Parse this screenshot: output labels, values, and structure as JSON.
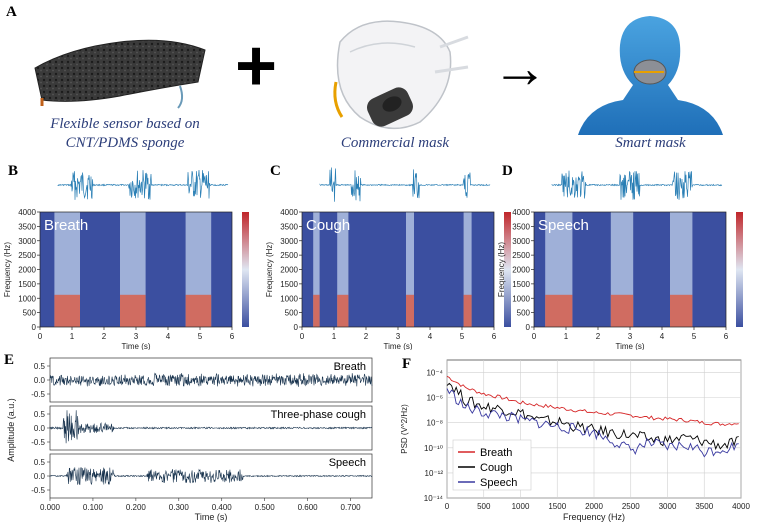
{
  "panel_a": {
    "letter": "A",
    "sensor_caption_line1": "Flexible sensor based on",
    "sensor_caption_line2": "CNT/PDMS sponge",
    "mask_caption": "Commercial mask",
    "smart_caption": "Smart mask",
    "plus_symbol": "+",
    "arrow_symbol": "→"
  },
  "panels_bcd": [
    {
      "letter": "B",
      "label": "Breath"
    },
    {
      "letter": "C",
      "label": "Cough"
    },
    {
      "letter": "D",
      "label": "Speech"
    }
  ],
  "spectrogram_axes": {
    "ylabel": "Frequency (Hz)",
    "xlabel": "Time (s)",
    "yticks": [
      "0",
      "500",
      "1000",
      "1500",
      "2000",
      "2500",
      "3000",
      "3500",
      "4000"
    ],
    "xticks": [
      "0",
      "1",
      "2",
      "3",
      "4",
      "5",
      "6"
    ]
  },
  "panel_e": {
    "letter": "E",
    "ylabel": "Amplitude (a.u.)",
    "xlabel": "Time (s)",
    "yticks": [
      "0.5",
      "0.0",
      "-0.5"
    ],
    "xticks": [
      "0.000",
      "0.100",
      "0.200",
      "0.300",
      "0.400",
      "0.500",
      "0.600",
      "0.700"
    ],
    "traces": [
      "Breath",
      "Three-phase cough",
      "Speech"
    ]
  },
  "chart_data": [
    {
      "type": "line",
      "panel": "F",
      "xlabel": "Frequency (Hz)",
      "ylabel": "PSD (V^2/Hz)",
      "xlim": [
        0,
        4000
      ],
      "ylim_exp": [
        -14,
        -3
      ],
      "log_y": true,
      "legend": "bottom-left",
      "grid": true,
      "x_ticks": [
        "0",
        "500",
        "1000",
        "1500",
        "2000",
        "2500",
        "3000",
        "3500",
        "4000"
      ],
      "y_ticks": [
        "10⁻⁴",
        "10⁻⁶",
        "10⁻⁸",
        "10⁻¹⁰",
        "10⁻¹²",
        "10⁻¹⁴"
      ],
      "x": [
        0,
        250,
        500,
        750,
        1000,
        1250,
        1500,
        1750,
        2000,
        2250,
        2500,
        2750,
        3000,
        3250,
        3500,
        3750,
        4000
      ],
      "series": [
        {
          "name": "Breath",
          "color": "#d62728",
          "log10_values": [
            -4.3,
            -5.2,
            -5.7,
            -6.0,
            -6.4,
            -6.6,
            -6.8,
            -7.0,
            -7.2,
            -7.3,
            -7.4,
            -7.6,
            -7.7,
            -7.8,
            -8.0,
            -8.1,
            -8.0
          ]
        },
        {
          "name": "Cough",
          "color": "#000000",
          "log10_values": [
            -4.6,
            -6.2,
            -6.7,
            -6.9,
            -7.2,
            -7.8,
            -7.9,
            -8.3,
            -8.6,
            -8.8,
            -9.0,
            -9.3,
            -9.4,
            -9.2,
            -9.5,
            -9.8,
            -9.5
          ]
        },
        {
          "name": "Speech",
          "color": "#3a3aa0",
          "log10_values": [
            -5.3,
            -6.8,
            -7.2,
            -7.4,
            -7.8,
            -8.0,
            -8.3,
            -8.5,
            -8.8,
            -9.4,
            -10.2,
            -9.6,
            -10.0,
            -9.8,
            -10.3,
            -10.1,
            -9.8
          ]
        }
      ]
    }
  ],
  "colors": {
    "wave": "#2a7fb5",
    "spec_low": "#3b4fa0",
    "spec_high": "#e0553a",
    "caption": "#2c3e7a"
  }
}
